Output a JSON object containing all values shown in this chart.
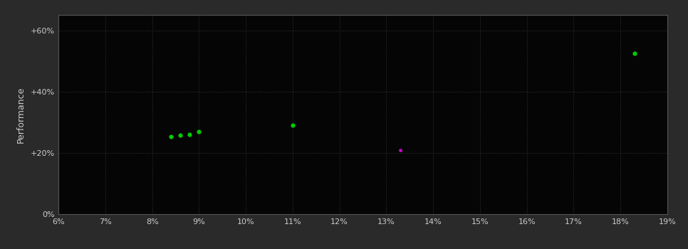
{
  "background_color": "#2a2a2a",
  "plot_bg_color": "#050505",
  "grid_color": "#333333",
  "text_color": "#cccccc",
  "ylabel": "Performance",
  "xlim": [
    0.06,
    0.19
  ],
  "ylim": [
    0.0,
    0.65
  ],
  "xtick_vals": [
    0.06,
    0.07,
    0.08,
    0.09,
    0.1,
    0.11,
    0.12,
    0.13,
    0.14,
    0.15,
    0.16,
    0.17,
    0.18,
    0.19
  ],
  "ytick_vals": [
    0.0,
    0.2,
    0.4,
    0.6
  ],
  "ytick_labels": [
    "0%",
    "+20%",
    "+40%",
    "+60%"
  ],
  "green_points": [
    [
      0.084,
      0.252
    ],
    [
      0.086,
      0.258
    ],
    [
      0.088,
      0.261
    ],
    [
      0.09,
      0.27
    ],
    [
      0.11,
      0.29
    ],
    [
      0.183,
      0.525
    ]
  ],
  "magenta_points": [
    [
      0.133,
      0.21
    ]
  ],
  "green_color": "#00cc00",
  "magenta_color": "#cc00cc",
  "marker_size": 6,
  "spine_color": "#555555",
  "xlabel_fontsize": 9,
  "ylabel_fontsize": 9,
  "tick_fontsize": 8
}
